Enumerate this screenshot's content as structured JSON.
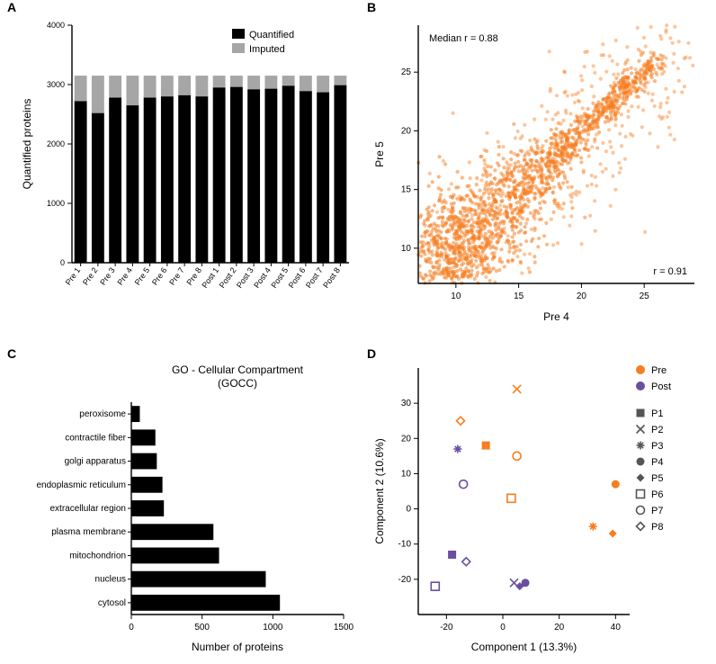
{
  "panelA": {
    "label": "A",
    "type": "bar",
    "ylabel": "Quantified proteins",
    "ylim": [
      0,
      4000
    ],
    "ytick_step": 1000,
    "categories": [
      "Pre 1",
      "Pre 2",
      "Pre 3",
      "Pre 4",
      "Pre 5",
      "Pre 6",
      "Pre 7",
      "Pre 8",
      "Post 1",
      "Post 2",
      "Post 3",
      "Post 4",
      "Post 5",
      "Post 6",
      "Post 7",
      "Post 8"
    ],
    "quantified": [
      2720,
      2520,
      2780,
      2650,
      2780,
      2800,
      2820,
      2800,
      2950,
      2960,
      2920,
      2930,
      2980,
      2890,
      2870,
      2990
    ],
    "imputed": [
      3150,
      3150,
      3150,
      3150,
      3150,
      3150,
      3150,
      3150,
      3150,
      3150,
      3150,
      3150,
      3150,
      3150,
      3150,
      3150
    ],
    "bar_fill_quantified": "#000000",
    "bar_fill_imputed": "#a6a6a6",
    "bar_width": 0.72,
    "legend": {
      "items": [
        {
          "label": "Quantified",
          "color": "#000000"
        },
        {
          "label": "Imputed",
          "color": "#a6a6a6"
        }
      ],
      "fontsize": 11
    },
    "axis_color": "#000000",
    "tick_fontsize": 9,
    "label_fontsize": 12
  },
  "panelB": {
    "label": "B",
    "type": "scatter",
    "xlabel": "Pre 4",
    "ylabel": "Pre 5",
    "xlim": [
      7,
      29
    ],
    "ylim": [
      7,
      29
    ],
    "xticks": [
      10,
      15,
      20,
      25
    ],
    "yticks": [
      10,
      15,
      20,
      25
    ],
    "annotation_top": "Median r = 0.88",
    "annotation_bottom": "r = 0.91",
    "point_color": "#f57e20",
    "point_stroke": "#f57e20",
    "point_radius": 2.1,
    "point_opacity": 0.55,
    "axis_color": "#000000",
    "tick_fontsize": 10,
    "label_fontsize": 12,
    "density_center": [
      13,
      13
    ],
    "density_n_core": 1600,
    "density_n_spread": 450
  },
  "panelC": {
    "label": "C",
    "type": "bar_horizontal",
    "title": "GO - Cellular Compartment\n(GOCC)",
    "xlabel": "Number of proteins",
    "xlim": [
      0,
      1500
    ],
    "xtick_step": 500,
    "categories": [
      "peroxisome",
      "contractile fiber",
      "golgi apparatus",
      "endoplasmic reticulum",
      "extracellular region",
      "plasma membrane",
      "mitochondrion",
      "nucleus",
      "cytosol"
    ],
    "values": [
      60,
      170,
      180,
      220,
      230,
      580,
      620,
      950,
      1050
    ],
    "bar_fill": "#000000",
    "bar_height": 0.68,
    "axis_color": "#000000",
    "tick_fontsize": 10,
    "label_fontsize": 12,
    "title_fontsize": 12
  },
  "panelD": {
    "label": "D",
    "type": "scatter",
    "xlabel": "Component 1 (13.3%)",
    "ylabel": "Component 2 (10.6%)",
    "xlim": [
      -30,
      45
    ],
    "ylim": [
      -30,
      40
    ],
    "xticks": [
      -20,
      0,
      20,
      40
    ],
    "yticks": [
      -20,
      -10,
      0,
      10,
      20,
      30
    ],
    "axis_color": "#000000",
    "tick_fontsize": 10,
    "label_fontsize": 12,
    "colors": {
      "Pre": "#f57e20",
      "Post": "#6a4ea0"
    },
    "marker_stroke_width": 1.6,
    "marker_size": 9,
    "legend_groups": [
      {
        "label": "Pre",
        "color": "#f57e20",
        "shape": "circle-filled"
      },
      {
        "label": "Post",
        "color": "#6a4ea0",
        "shape": "circle-filled"
      }
    ],
    "legend_markers": [
      {
        "label": "P1",
        "shape": "square-filled"
      },
      {
        "label": "P2",
        "shape": "x"
      },
      {
        "label": "P3",
        "shape": "asterisk"
      },
      {
        "label": "P4",
        "shape": "circle-filled"
      },
      {
        "label": "P5",
        "shape": "diamond-filled"
      },
      {
        "label": "P6",
        "shape": "square-open"
      },
      {
        "label": "P7",
        "shape": "circle-open"
      },
      {
        "label": "P8",
        "shape": "diamond-open"
      }
    ],
    "points": [
      {
        "g": "Pre",
        "p": "P1",
        "x": -6,
        "y": 18
      },
      {
        "g": "Pre",
        "p": "P2",
        "x": 5,
        "y": 34
      },
      {
        "g": "Pre",
        "p": "P3",
        "x": 32,
        "y": -5
      },
      {
        "g": "Pre",
        "p": "P4",
        "x": 40,
        "y": 7
      },
      {
        "g": "Pre",
        "p": "P5",
        "x": 39,
        "y": -7
      },
      {
        "g": "Pre",
        "p": "P6",
        "x": 3,
        "y": 3
      },
      {
        "g": "Pre",
        "p": "P7",
        "x": 5,
        "y": 15
      },
      {
        "g": "Pre",
        "p": "P8",
        "x": -15,
        "y": 25
      },
      {
        "g": "Post",
        "p": "P1",
        "x": -18,
        "y": -13
      },
      {
        "g": "Post",
        "p": "P2",
        "x": 4,
        "y": -21
      },
      {
        "g": "Post",
        "p": "P3",
        "x": -16,
        "y": 17
      },
      {
        "g": "Post",
        "p": "P4",
        "x": 8,
        "y": -21
      },
      {
        "g": "Post",
        "p": "P5",
        "x": 6,
        "y": -22
      },
      {
        "g": "Post",
        "p": "P6",
        "x": -24,
        "y": -22
      },
      {
        "g": "Post",
        "p": "P7",
        "x": -14,
        "y": 7
      },
      {
        "g": "Post",
        "p": "P8",
        "x": -13,
        "y": -15
      }
    ]
  },
  "layout": {
    "panel_label_fontsize": 14,
    "background": "#ffffff"
  }
}
